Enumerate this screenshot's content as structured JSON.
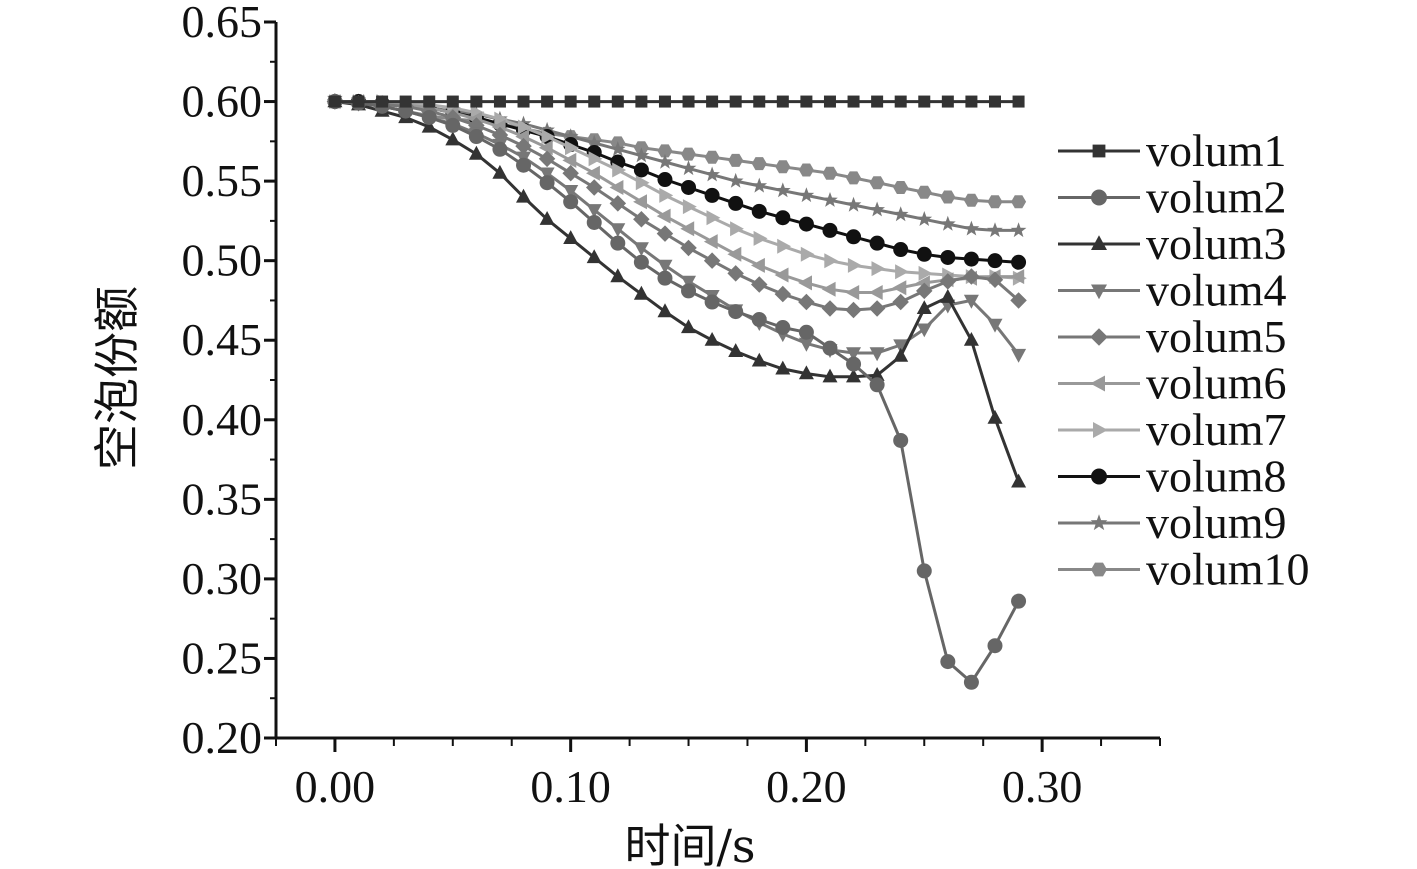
{
  "chart_data": {
    "type": "line",
    "xlabel": "时间/s",
    "ylabel": "空泡份额",
    "xlim": [
      -0.025,
      0.35
    ],
    "ylim": [
      0.2,
      0.65
    ],
    "x_ticks": [
      0.0,
      0.1,
      0.2,
      0.3
    ],
    "x_tick_labels": [
      "0.00",
      "0.10",
      "0.20",
      "0.30"
    ],
    "y_ticks": [
      0.2,
      0.25,
      0.3,
      0.35,
      0.4,
      0.45,
      0.5,
      0.55,
      0.6,
      0.65
    ],
    "y_tick_labels": [
      "0.20",
      "0.25",
      "0.30",
      "0.35",
      "0.40",
      "0.45",
      "0.50",
      "0.55",
      "0.60",
      "0.65"
    ],
    "grid": false,
    "legend_position": "right",
    "x": [
      0.0,
      0.01,
      0.02,
      0.03,
      0.04,
      0.05,
      0.06,
      0.07,
      0.08,
      0.09,
      0.1,
      0.11,
      0.12,
      0.13,
      0.14,
      0.15,
      0.16,
      0.17,
      0.18,
      0.19,
      0.2,
      0.21,
      0.22,
      0.23,
      0.24,
      0.25,
      0.26,
      0.27,
      0.28,
      0.29
    ],
    "series": [
      {
        "name": "volum1",
        "marker": "square",
        "color": "#333333",
        "values": [
          0.6,
          0.6,
          0.6,
          0.6,
          0.6,
          0.6,
          0.6,
          0.6,
          0.6,
          0.6,
          0.6,
          0.6,
          0.6,
          0.6,
          0.6,
          0.6,
          0.6,
          0.6,
          0.6,
          0.6,
          0.6,
          0.6,
          0.6,
          0.6,
          0.6,
          0.6,
          0.6,
          0.6,
          0.6,
          0.6
        ]
      },
      {
        "name": "volum2",
        "marker": "circle",
        "color": "#666666",
        "values": [
          0.6,
          0.599,
          0.597,
          0.594,
          0.59,
          0.585,
          0.578,
          0.57,
          0.56,
          0.549,
          0.537,
          0.524,
          0.511,
          0.499,
          0.489,
          0.481,
          0.474,
          0.468,
          0.463,
          0.458,
          0.455,
          0.445,
          0.435,
          0.422,
          0.387,
          0.305,
          0.248,
          0.235,
          0.258,
          0.286
        ]
      },
      {
        "name": "volum3",
        "marker": "triangle-up",
        "color": "#333333",
        "values": [
          0.6,
          0.598,
          0.594,
          0.59,
          0.584,
          0.576,
          0.567,
          0.555,
          0.54,
          0.526,
          0.514,
          0.502,
          0.49,
          0.479,
          0.468,
          0.458,
          0.45,
          0.443,
          0.437,
          0.432,
          0.429,
          0.427,
          0.427,
          0.428,
          0.44,
          0.47,
          0.477,
          0.45,
          0.401,
          0.361
        ]
      },
      {
        "name": "volum4",
        "marker": "triangle-down",
        "color": "#777777",
        "values": [
          0.6,
          0.599,
          0.597,
          0.594,
          0.59,
          0.586,
          0.58,
          0.573,
          0.565,
          0.555,
          0.544,
          0.532,
          0.52,
          0.508,
          0.497,
          0.487,
          0.478,
          0.469,
          0.461,
          0.454,
          0.448,
          0.444,
          0.442,
          0.442,
          0.447,
          0.457,
          0.472,
          0.475,
          0.46,
          0.441
        ]
      },
      {
        "name": "volum5",
        "marker": "diamond",
        "color": "#777777",
        "values": [
          0.6,
          0.599,
          0.598,
          0.597,
          0.594,
          0.59,
          0.585,
          0.579,
          0.572,
          0.564,
          0.555,
          0.546,
          0.536,
          0.526,
          0.517,
          0.508,
          0.5,
          0.492,
          0.485,
          0.479,
          0.474,
          0.47,
          0.469,
          0.47,
          0.474,
          0.481,
          0.487,
          0.49,
          0.488,
          0.475
        ]
      },
      {
        "name": "volum6",
        "marker": "triangle-left",
        "color": "#999999",
        "values": [
          0.6,
          0.6,
          0.599,
          0.598,
          0.596,
          0.593,
          0.589,
          0.584,
          0.578,
          0.571,
          0.563,
          0.555,
          0.546,
          0.537,
          0.528,
          0.52,
          0.512,
          0.504,
          0.497,
          0.491,
          0.486,
          0.482,
          0.48,
          0.48,
          0.483,
          0.486,
          0.488,
          0.489,
          0.49,
          0.49
        ]
      },
      {
        "name": "volum7",
        "marker": "triangle-right",
        "color": "#aaaaaa",
        "values": [
          0.6,
          0.6,
          0.6,
          0.599,
          0.598,
          0.596,
          0.593,
          0.589,
          0.584,
          0.578,
          0.571,
          0.564,
          0.557,
          0.549,
          0.541,
          0.534,
          0.527,
          0.52,
          0.514,
          0.509,
          0.504,
          0.5,
          0.497,
          0.495,
          0.493,
          0.492,
          0.491,
          0.49,
          0.49,
          0.489
        ]
      },
      {
        "name": "volum8",
        "marker": "circle",
        "color": "#111111",
        "values": [
          0.6,
          0.6,
          0.599,
          0.598,
          0.596,
          0.593,
          0.59,
          0.586,
          0.582,
          0.578,
          0.573,
          0.568,
          0.562,
          0.557,
          0.551,
          0.546,
          0.541,
          0.536,
          0.531,
          0.527,
          0.523,
          0.519,
          0.515,
          0.511,
          0.507,
          0.504,
          0.502,
          0.501,
          0.5,
          0.499
        ]
      },
      {
        "name": "volum9",
        "marker": "star",
        "color": "#777777",
        "values": [
          0.6,
          0.6,
          0.599,
          0.598,
          0.596,
          0.594,
          0.592,
          0.589,
          0.586,
          0.582,
          0.578,
          0.574,
          0.57,
          0.566,
          0.562,
          0.558,
          0.554,
          0.55,
          0.547,
          0.544,
          0.541,
          0.538,
          0.535,
          0.532,
          0.529,
          0.526,
          0.523,
          0.52,
          0.519,
          0.519
        ]
      },
      {
        "name": "volum10",
        "marker": "hexagon",
        "color": "#888888",
        "values": [
          0.6,
          0.599,
          0.597,
          0.594,
          0.591,
          0.589,
          0.588,
          0.586,
          0.583,
          0.58,
          0.578,
          0.576,
          0.574,
          0.571,
          0.569,
          0.567,
          0.565,
          0.563,
          0.561,
          0.559,
          0.557,
          0.555,
          0.552,
          0.549,
          0.546,
          0.543,
          0.54,
          0.538,
          0.537,
          0.537
        ]
      }
    ]
  }
}
